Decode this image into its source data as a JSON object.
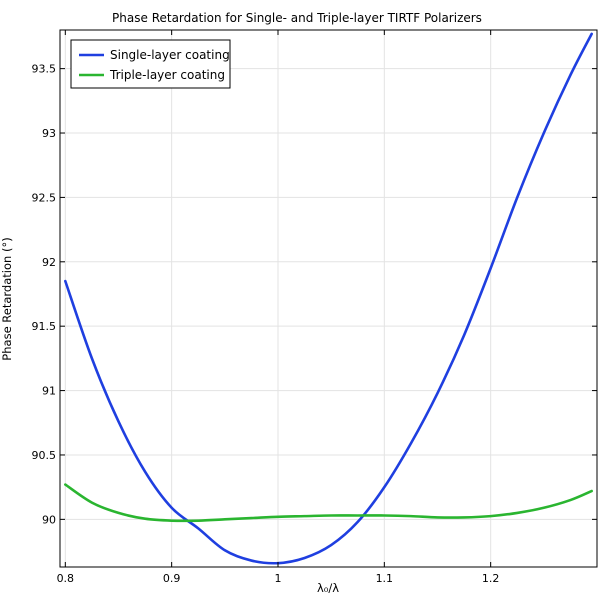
{
  "chart_data": {
    "type": "line",
    "title": "Phase Retardation for Single- and Triple-layer TIRTF Polarizers",
    "xlabel": "λ₀/λ",
    "ylabel": "Phase Retardation (°)",
    "xlim": [
      0.795,
      1.3
    ],
    "ylim": [
      89.63,
      93.8
    ],
    "xticks": [
      0.8,
      0.9,
      1,
      1.1,
      1.2
    ],
    "xtick_labels": [
      "0.8",
      "0.9",
      "1",
      "1.1",
      "1.2"
    ],
    "yticks": [
      90,
      90.5,
      91,
      91.5,
      92,
      92.5,
      93,
      93.5
    ],
    "ytick_labels": [
      "90",
      "90.5",
      "91",
      "91.5",
      "92",
      "92.5",
      "93",
      "93.5"
    ],
    "grid": true,
    "legend_position": "top-left",
    "series": [
      {
        "name": "Single-layer coating",
        "color": "#1f3fe0",
        "x": [
          0.8,
          0.825,
          0.85,
          0.875,
          0.9,
          0.925,
          0.95,
          0.975,
          1.0,
          1.025,
          1.05,
          1.075,
          1.1,
          1.125,
          1.15,
          1.175,
          1.2,
          1.225,
          1.25,
          1.275,
          1.295
        ],
        "y": [
          91.85,
          91.25,
          90.76,
          90.37,
          90.09,
          89.93,
          89.76,
          89.68,
          89.66,
          89.7,
          89.8,
          89.98,
          90.25,
          90.59,
          90.98,
          91.43,
          91.95,
          92.5,
          93.0,
          93.45,
          93.77
        ]
      },
      {
        "name": "Triple-layer coating",
        "color": "#2ab530",
        "x": [
          0.8,
          0.825,
          0.85,
          0.875,
          0.9,
          0.925,
          0.95,
          0.975,
          1.0,
          1.025,
          1.05,
          1.075,
          1.1,
          1.125,
          1.15,
          1.175,
          1.2,
          1.225,
          1.25,
          1.275,
          1.295
        ],
        "y": [
          90.27,
          90.13,
          90.05,
          90.005,
          89.99,
          89.99,
          90.0,
          90.01,
          90.02,
          90.025,
          90.03,
          90.03,
          90.03,
          90.025,
          90.015,
          90.015,
          90.025,
          90.05,
          90.09,
          90.15,
          90.22
        ]
      }
    ]
  }
}
